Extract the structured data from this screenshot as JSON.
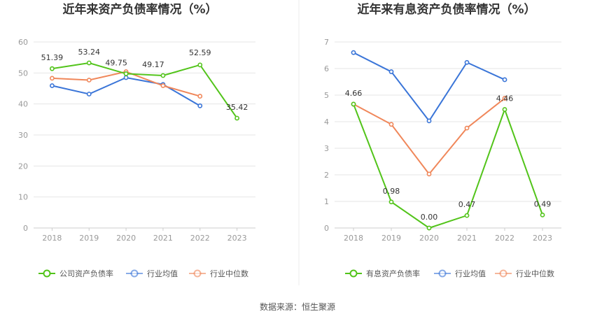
{
  "source": "数据来源：恒生聚源",
  "colors": {
    "company": "#52c41a",
    "avg": "#3a75d8",
    "median": "#f0875a"
  },
  "chart_data": [
    {
      "type": "line",
      "title": "近年来资产负债率情况（%）",
      "categories": [
        "2018",
        "2019",
        "2020",
        "2021",
        "2022",
        "2023"
      ],
      "ylim": [
        0,
        60
      ],
      "yticks": [
        0,
        10,
        20,
        30,
        40,
        50,
        60
      ],
      "grid": true,
      "legend_position": "bottom",
      "series": [
        {
          "name": "公司资产负债率",
          "color": "#52c41a",
          "values": [
            51.39,
            53.24,
            49.75,
            49.17,
            52.59,
            35.42
          ],
          "labels": [
            "51.39",
            "53.24",
            "49.75",
            "49.17",
            "52.59",
            "35.42"
          ]
        },
        {
          "name": "行业均值",
          "color": "#3a75d8",
          "values": [
            45.9,
            43.2,
            48.5,
            46.3,
            39.4,
            null
          ]
        },
        {
          "name": "行业中位数",
          "color": "#f0875a",
          "values": [
            48.3,
            47.7,
            50.4,
            45.9,
            42.5,
            null
          ]
        }
      ]
    },
    {
      "type": "line",
      "title": "近年来有息资产负债率情况（%）",
      "categories": [
        "2018",
        "2019",
        "2020",
        "2021",
        "2022",
        "2023"
      ],
      "ylim": [
        0,
        7
      ],
      "yticks": [
        0,
        1,
        2,
        3,
        4,
        5,
        6,
        7
      ],
      "grid": true,
      "legend_position": "bottom",
      "series": [
        {
          "name": "有息资产负债率",
          "color": "#52c41a",
          "values": [
            4.66,
            0.98,
            0.0,
            0.47,
            4.46,
            0.49
          ],
          "labels": [
            "4.66",
            "0.98",
            "0.00",
            "0.47",
            "4.46",
            "0.49"
          ]
        },
        {
          "name": "行业均值",
          "color": "#3a75d8",
          "values": [
            6.6,
            5.88,
            4.03,
            6.23,
            5.58,
            null
          ]
        },
        {
          "name": "行业中位数",
          "color": "#f0875a",
          "values": [
            4.66,
            3.9,
            2.03,
            3.76,
            4.88,
            null
          ]
        }
      ]
    }
  ]
}
